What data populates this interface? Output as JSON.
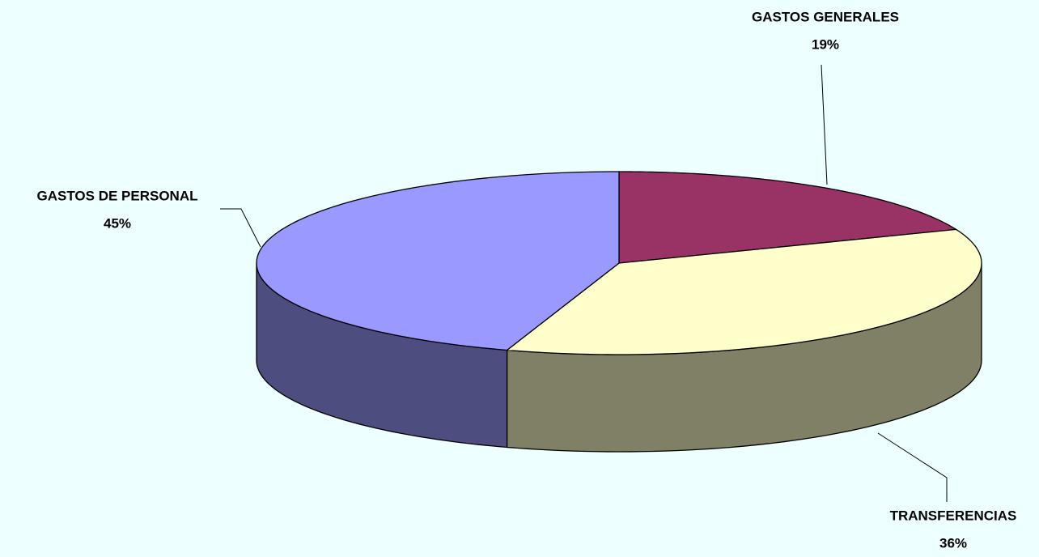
{
  "chart_data": {
    "type": "pie",
    "categories": [
      "GASTOS GENERALES",
      "TRANSFERENCIAS",
      "GASTOS DE PERSONAL"
    ],
    "values": [
      19,
      36,
      45
    ],
    "value_labels": [
      "19%",
      "36%",
      "45%"
    ],
    "colors": [
      "#993366",
      "#ffffcc",
      "#9999ff"
    ]
  }
}
